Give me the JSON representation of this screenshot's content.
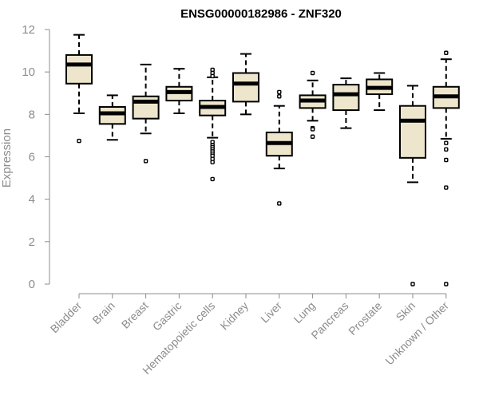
{
  "chart_data": {
    "type": "box",
    "title": "ENSG00000182986 - ZNF320",
    "xlabel": "",
    "ylabel": "Expression",
    "ylim": [
      0,
      12
    ],
    "yticks": [
      0,
      2,
      4,
      6,
      8,
      10,
      12
    ],
    "box_fill": "#ede6cc",
    "categories": [
      "Bladder",
      "Brain",
      "Breast",
      "Gastric",
      "Hematopoietic cells",
      "Kidney",
      "Liver",
      "Lung",
      "Pancreas",
      "Prostate",
      "Skin",
      "Unknown / Other"
    ],
    "boxes": [
      {
        "whisker_low": 8.05,
        "q1": 9.45,
        "median": 10.35,
        "q3": 10.8,
        "whisker_high": 11.75,
        "outliers": [
          6.75
        ]
      },
      {
        "whisker_low": 6.8,
        "q1": 7.55,
        "median": 8.05,
        "q3": 8.35,
        "whisker_high": 8.9,
        "outliers": []
      },
      {
        "whisker_low": 7.1,
        "q1": 7.8,
        "median": 8.6,
        "q3": 8.85,
        "whisker_high": 10.35,
        "outliers": [
          5.8
        ]
      },
      {
        "whisker_low": 8.05,
        "q1": 8.65,
        "median": 9.05,
        "q3": 9.3,
        "whisker_high": 10.15,
        "outliers": []
      },
      {
        "whisker_low": 6.9,
        "q1": 7.95,
        "median": 8.35,
        "q3": 8.65,
        "whisker_high": 9.75,
        "outliers": [
          10.1,
          9.95,
          9.8,
          6.7,
          6.55,
          6.45,
          6.35,
          6.25,
          6.15,
          6.05,
          5.9,
          5.75,
          4.95
        ]
      },
      {
        "whisker_low": 8.0,
        "q1": 8.6,
        "median": 9.45,
        "q3": 9.95,
        "whisker_high": 10.85,
        "outliers": []
      },
      {
        "whisker_low": 5.45,
        "q1": 6.05,
        "median": 6.65,
        "q3": 7.15,
        "whisker_high": 8.4,
        "outliers": [
          9.05,
          8.85,
          3.8
        ]
      },
      {
        "whisker_low": 7.7,
        "q1": 8.3,
        "median": 8.65,
        "q3": 8.9,
        "whisker_high": 9.6,
        "outliers": [
          9.95,
          7.35,
          7.3,
          6.95
        ]
      },
      {
        "whisker_low": 7.35,
        "q1": 8.2,
        "median": 8.95,
        "q3": 9.4,
        "whisker_high": 9.7,
        "outliers": []
      },
      {
        "whisker_low": 8.2,
        "q1": 8.95,
        "median": 9.25,
        "q3": 9.65,
        "whisker_high": 9.95,
        "outliers": []
      },
      {
        "whisker_low": 4.8,
        "q1": 5.95,
        "median": 7.7,
        "q3": 8.4,
        "whisker_high": 9.35,
        "outliers": [
          0.0
        ]
      },
      {
        "whisker_low": 6.85,
        "q1": 8.3,
        "median": 8.85,
        "q3": 9.3,
        "whisker_high": 10.6,
        "outliers": [
          10.9,
          6.65,
          6.35,
          5.85,
          4.55,
          0.0
        ]
      }
    ]
  }
}
